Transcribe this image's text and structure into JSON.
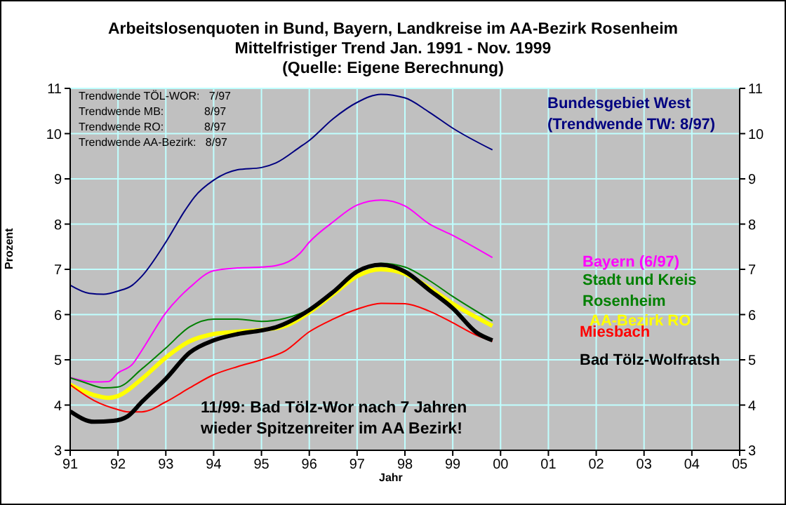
{
  "chart_data": {
    "type": "line",
    "title": "Arbeitslosenquoten in Bund, Bayern, Landkreise im AA-Bezirk Rosenheim",
    "subtitle": "Mittelfristiger Trend Jan. 1991 -  Nov. 1999\n(Quelle: Eigene Berechnung)",
    "xlabel": "Jahr",
    "ylabel": "Prozent",
    "annotations": [
      "Trendwende TÖL-WOR:   7/97",
      "Trendwende MB:             8/97",
      "Trendwende RO:             8/97",
      "Trendwende AA-Bezirk:   8/97",
      "11/99: Bad Tölz-Wor nach 7 Jahren\nwieder Spitzenreiter im AA Bezirk!"
    ],
    "xlim": [
      1991,
      2005
    ],
    "xticks": [
      {
        "value": 1991,
        "label": "91"
      },
      {
        "value": 1992,
        "label": "92"
      },
      {
        "value": 1993,
        "label": "93"
      },
      {
        "value": 1994,
        "label": "94"
      },
      {
        "value": 1995,
        "label": "95"
      },
      {
        "value": 1996,
        "label": "96"
      },
      {
        "value": 1997,
        "label": "97"
      },
      {
        "value": 1998,
        "label": "98"
      },
      {
        "value": 1999,
        "label": "99"
      },
      {
        "value": 2000,
        "label": "00"
      },
      {
        "value": 2001,
        "label": "01"
      },
      {
        "value": 2002,
        "label": "02"
      },
      {
        "value": 2003,
        "label": "03"
      },
      {
        "value": 2004,
        "label": "04"
      },
      {
        "value": 2005,
        "label": "05"
      }
    ],
    "ylim": [
      3,
      11
    ],
    "yticks": [
      3,
      4,
      5,
      6,
      7,
      8,
      9,
      10,
      11
    ],
    "y2lim": [
      3,
      11
    ],
    "y2ticks": [
      3,
      4,
      5,
      6,
      7,
      8,
      9,
      10,
      11
    ],
    "grid": true,
    "marker": "none",
    "line_style": "solid",
    "series": [
      {
        "name": "Bundesgebiet West (Trendwende TW: 8/97)",
        "color": "#000080",
        "x": [
          1991,
          1991.4,
          1991.7,
          1992,
          1992.3,
          1992.5,
          1993,
          1993.4,
          1993.6,
          1994,
          1994.5,
          1995,
          1995.3,
          1995.8,
          1996,
          1996.5,
          1997,
          1997.5,
          1998,
          1998.5,
          1999,
          1999.83
        ],
        "values": [
          6.65,
          6.47,
          6.45,
          6.52,
          6.65,
          6.85,
          7.6,
          8.3,
          8.6,
          8.97,
          9.2,
          9.25,
          9.35,
          9.7,
          9.85,
          10.33,
          10.69,
          10.87,
          10.79,
          10.48,
          10.12,
          9.64
        ]
      },
      {
        "name": "Bayern (6/97)",
        "color": "#ff00ff",
        "x": [
          1991,
          1991.5,
          1991.8,
          1992,
          1992.3,
          1992.5,
          1993,
          1993.5,
          1994,
          1994.5,
          1995,
          1995.3,
          1995.8,
          1996,
          1996.5,
          1997,
          1997.5,
          1998,
          1998.5,
          1999,
          1999.83
        ],
        "values": [
          4.61,
          4.51,
          4.52,
          4.71,
          4.9,
          5.21,
          6.04,
          6.6,
          6.97,
          7.03,
          7.05,
          7.08,
          7.35,
          7.6,
          8.05,
          8.42,
          8.53,
          8.4,
          8.01,
          7.75,
          7.26
        ]
      },
      {
        "name": "Stadt und Kreis Rosenheim",
        "color": "#008000",
        "x": [
          1991,
          1991.3,
          1991.7,
          1992,
          1992.5,
          1993,
          1993.5,
          1994,
          1994.5,
          1995,
          1995.5,
          1996,
          1996.5,
          1997,
          1997.5,
          1998,
          1998.5,
          1999,
          1999.83
        ],
        "values": [
          4.6,
          4.5,
          4.38,
          4.4,
          4.8,
          5.26,
          5.73,
          5.9,
          5.9,
          5.85,
          5.92,
          6.12,
          6.5,
          6.95,
          7.13,
          7.05,
          6.76,
          6.4,
          5.86
        ]
      },
      {
        "name": "AA-Bezirk RO",
        "color": "#ffff00",
        "x": [
          1991,
          1991.5,
          1991.8,
          1992,
          1992.5,
          1993,
          1993.5,
          1994,
          1994.5,
          1995,
          1995.5,
          1996,
          1996.5,
          1997,
          1997.5,
          1998,
          1998.5,
          1999,
          1999.83
        ],
        "values": [
          4.45,
          4.22,
          4.16,
          4.2,
          4.58,
          5.05,
          5.41,
          5.57,
          5.62,
          5.66,
          5.75,
          6.05,
          6.45,
          6.85,
          7.0,
          6.9,
          6.6,
          6.24,
          5.75
        ]
      },
      {
        "name": "Miesbach",
        "color": "#ff0000",
        "x": [
          1991,
          1991.5,
          1992,
          1992.2,
          1992.5,
          1993,
          1993.5,
          1994,
          1994.5,
          1995,
          1995.5,
          1996,
          1996.5,
          1997,
          1997.5,
          1998,
          1998.5,
          1999,
          1999.5,
          1999.83
        ],
        "values": [
          4.45,
          4.1,
          3.9,
          3.85,
          3.85,
          4.07,
          4.38,
          4.67,
          4.85,
          5.0,
          5.2,
          5.62,
          5.9,
          6.12,
          6.25,
          6.24,
          6.08,
          5.82,
          5.54,
          5.41
        ]
      },
      {
        "name": "Bad Tölz-Wolfratsh",
        "color": "#000000",
        "x": [
          1991,
          1991.5,
          1991.9,
          1992.2,
          1992.5,
          1993,
          1993.5,
          1994,
          1994.5,
          1995,
          1995.3,
          1996,
          1996.5,
          1997,
          1997.5,
          1998,
          1998.5,
          1999,
          1999.5,
          1999.83
        ],
        "values": [
          3.86,
          3.63,
          3.65,
          3.75,
          4.07,
          4.58,
          5.16,
          5.43,
          5.57,
          5.65,
          5.72,
          6.1,
          6.5,
          6.95,
          7.1,
          6.95,
          6.55,
          6.14,
          5.6,
          5.43
        ]
      }
    ]
  }
}
